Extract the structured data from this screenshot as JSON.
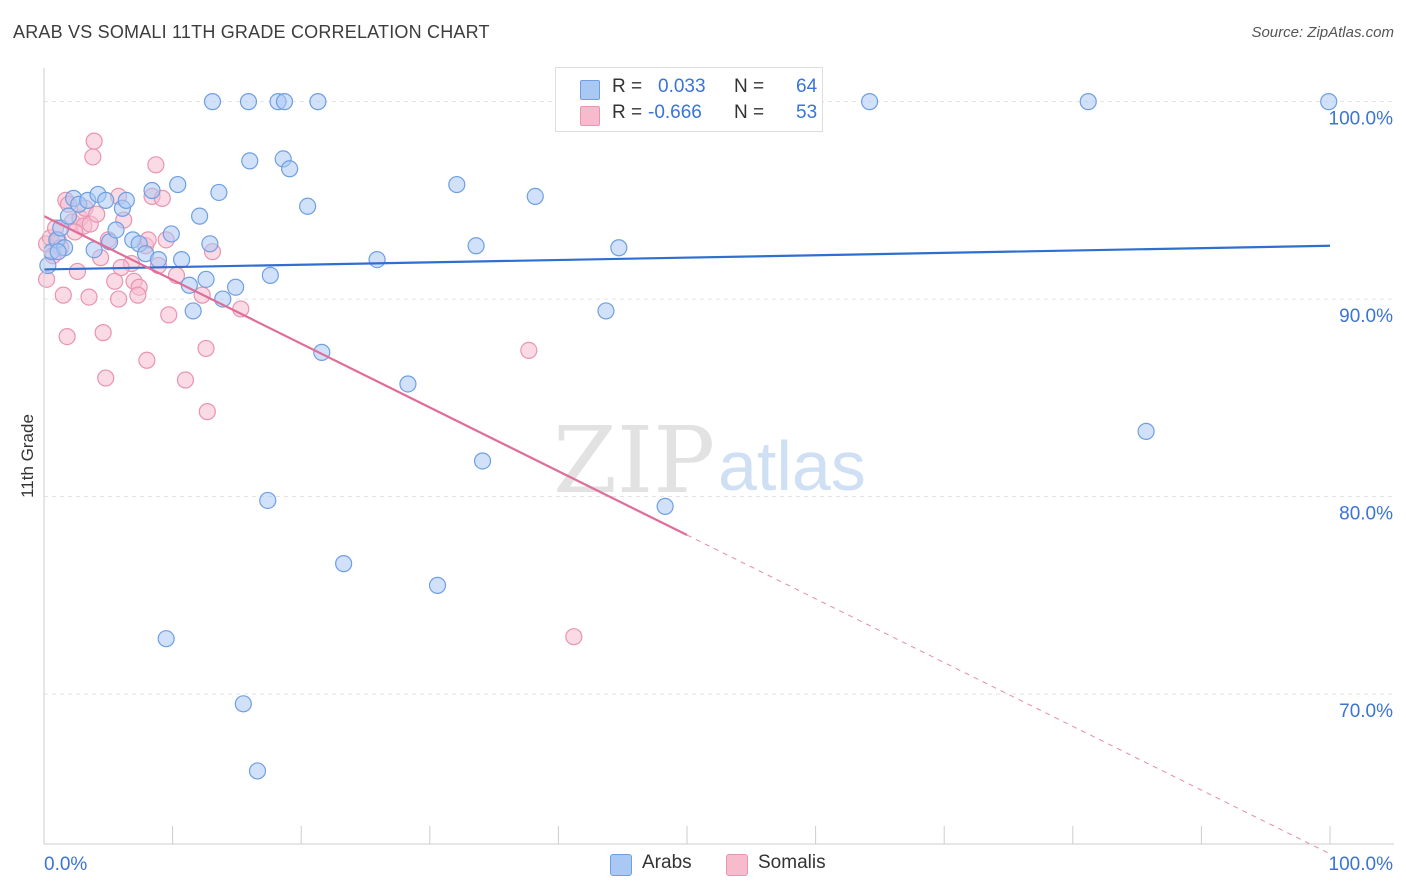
{
  "title": "ARAB VS SOMALI 11TH GRADE CORRELATION CHART",
  "source": "Source: ZipAtlas.com",
  "watermark": {
    "zip": "ZIP",
    "atlas": "atlas"
  },
  "legend": {
    "rows": [
      {
        "r_label": "R =",
        "r_value": "0.033",
        "n_label": "N =",
        "n_value": "64"
      },
      {
        "r_label": "R =",
        "r_value": "-0.666",
        "n_label": "N =",
        "n_value": "53"
      }
    ]
  },
  "bottom_legend": {
    "arabs": "Arabs",
    "somalis": "Somalis"
  },
  "colors": {
    "arabs_fill": "#aac8f4",
    "arabs_stroke": "#6f9fe3",
    "arabs_line": "#2f6fcf",
    "somalis_fill": "#f6bccd",
    "somalis_stroke": "#e994b1",
    "somalis_line": "#e06d98",
    "tick_label": "#3b74d4",
    "grid": "#e3e3e3"
  },
  "chart_data": {
    "type": "scatter",
    "title": "ARAB VS SOMALI 11TH GRADE CORRELATION CHART",
    "xlabel": "",
    "ylabel": "11th Grade",
    "xlim": [
      0,
      100
    ],
    "ylim": [
      62.4,
      101.4
    ],
    "x_tick_labels": [
      {
        "value": 0,
        "label": "0.0%"
      },
      {
        "value": 100,
        "label": "100.0%"
      }
    ],
    "y_tick_labels": [
      {
        "value": 100,
        "label": "100.0%"
      },
      {
        "value": 90,
        "label": "90.0%"
      },
      {
        "value": 80,
        "label": "80.0%"
      },
      {
        "value": 70,
        "label": "70.0%"
      }
    ],
    "y_gridlines": [
      100,
      90,
      80,
      70
    ],
    "x_minor_ticks": [
      10,
      20,
      30,
      40,
      50,
      60,
      70,
      80,
      90,
      100
    ],
    "grid": true,
    "legend_position": "top-center",
    "series": [
      {
        "name": "Arabs",
        "r": 0.033,
        "n": 64,
        "trend": {
          "x0": 0,
          "y0": 91.5,
          "x1": 100,
          "y1": 92.7,
          "solid_to": 100
        },
        "points": [
          [
            0.3,
            91.7
          ],
          [
            0.6,
            92.4
          ],
          [
            1.0,
            93.0
          ],
          [
            1.3,
            93.6
          ],
          [
            1.6,
            92.6
          ],
          [
            1.9,
            94.2
          ],
          [
            2.3,
            95.1
          ],
          [
            2.7,
            94.8
          ],
          [
            3.4,
            95.0
          ],
          [
            4.2,
            95.3
          ],
          [
            4.8,
            95.0
          ],
          [
            3.9,
            92.5
          ],
          [
            5.1,
            92.9
          ],
          [
            5.6,
            93.5
          ],
          [
            6.1,
            94.6
          ],
          [
            6.4,
            95.0
          ],
          [
            6.9,
            93.0
          ],
          [
            7.4,
            92.8
          ],
          [
            7.9,
            92.3
          ],
          [
            8.4,
            95.5
          ],
          [
            8.9,
            92.0
          ],
          [
            9.9,
            93.3
          ],
          [
            10.4,
            95.8
          ],
          [
            10.7,
            92.0
          ],
          [
            11.3,
            90.7
          ],
          [
            11.6,
            89.4
          ],
          [
            12.1,
            94.2
          ],
          [
            12.6,
            91.0
          ],
          [
            12.9,
            92.8
          ],
          [
            13.6,
            95.4
          ],
          [
            13.9,
            90.0
          ],
          [
            14.9,
            90.6
          ],
          [
            13.1,
            100.0
          ],
          [
            15.9,
            100.0
          ],
          [
            18.2,
            100.0
          ],
          [
            18.7,
            100.0
          ],
          [
            21.3,
            100.0
          ],
          [
            16.0,
            97.0
          ],
          [
            18.6,
            97.1
          ],
          [
            19.1,
            96.6
          ],
          [
            20.5,
            94.7
          ],
          [
            17.6,
            91.2
          ],
          [
            17.4,
            79.8
          ],
          [
            21.6,
            87.3
          ],
          [
            23.3,
            76.6
          ],
          [
            25.9,
            92.0
          ],
          [
            28.3,
            85.7
          ],
          [
            30.6,
            75.5
          ],
          [
            32.1,
            95.8
          ],
          [
            33.6,
            92.7
          ],
          [
            34.1,
            81.8
          ],
          [
            38.2,
            95.2
          ],
          [
            43.7,
            89.4
          ],
          [
            44.7,
            92.6
          ],
          [
            47.3,
            100.0
          ],
          [
            48.3,
            79.5
          ],
          [
            9.5,
            72.8
          ],
          [
            15.5,
            69.5
          ],
          [
            16.6,
            66.1
          ],
          [
            81.2,
            100.0
          ],
          [
            64.2,
            100.0
          ],
          [
            85.7,
            83.3
          ],
          [
            99.9,
            100.0
          ],
          [
            1.1,
            92.4
          ]
        ]
      },
      {
        "name": "Somalis",
        "r": -0.666,
        "n": 53,
        "trend": {
          "x0": 0,
          "y0": 94.2,
          "x1": 100,
          "y1": 61.9,
          "solid_to": 50
        },
        "points": [
          [
            0.2,
            92.8
          ],
          [
            0.2,
            91.0
          ],
          [
            0.5,
            93.1
          ],
          [
            0.9,
            93.6
          ],
          [
            1.1,
            93.0
          ],
          [
            1.3,
            92.6
          ],
          [
            1.7,
            95.0
          ],
          [
            1.9,
            94.8
          ],
          [
            2.2,
            93.9
          ],
          [
            2.8,
            94.1
          ],
          [
            2.6,
            91.4
          ],
          [
            3.2,
            94.6
          ],
          [
            3.1,
            93.7
          ],
          [
            3.6,
            93.8
          ],
          [
            3.8,
            97.2
          ],
          [
            3.9,
            98.0
          ],
          [
            4.1,
            94.3
          ],
          [
            4.4,
            92.1
          ],
          [
            5.0,
            93.0
          ],
          [
            5.5,
            90.9
          ],
          [
            5.8,
            95.2
          ],
          [
            6.2,
            94.0
          ],
          [
            6.8,
            91.8
          ],
          [
            7.0,
            90.9
          ],
          [
            7.4,
            90.6
          ],
          [
            7.3,
            90.2
          ],
          [
            7.9,
            92.7
          ],
          [
            8.1,
            93.0
          ],
          [
            8.7,
            96.8
          ],
          [
            8.4,
            95.2
          ],
          [
            8.9,
            91.7
          ],
          [
            9.5,
            93.0
          ],
          [
            9.7,
            89.2
          ],
          [
            10.3,
            91.2
          ],
          [
            11.0,
            85.9
          ],
          [
            12.3,
            90.2
          ],
          [
            12.6,
            87.5
          ],
          [
            12.7,
            84.3
          ],
          [
            13.1,
            92.4
          ],
          [
            15.3,
            89.5
          ],
          [
            1.5,
            90.2
          ],
          [
            1.8,
            88.1
          ],
          [
            3.5,
            90.1
          ],
          [
            4.6,
            88.3
          ],
          [
            4.8,
            86.0
          ],
          [
            5.8,
            90.0
          ],
          [
            6.0,
            91.6
          ],
          [
            8.0,
            86.9
          ],
          [
            9.2,
            95.1
          ],
          [
            37.7,
            87.4
          ],
          [
            41.2,
            72.9
          ],
          [
            2.4,
            93.4
          ],
          [
            0.7,
            92.2
          ]
        ]
      }
    ]
  }
}
